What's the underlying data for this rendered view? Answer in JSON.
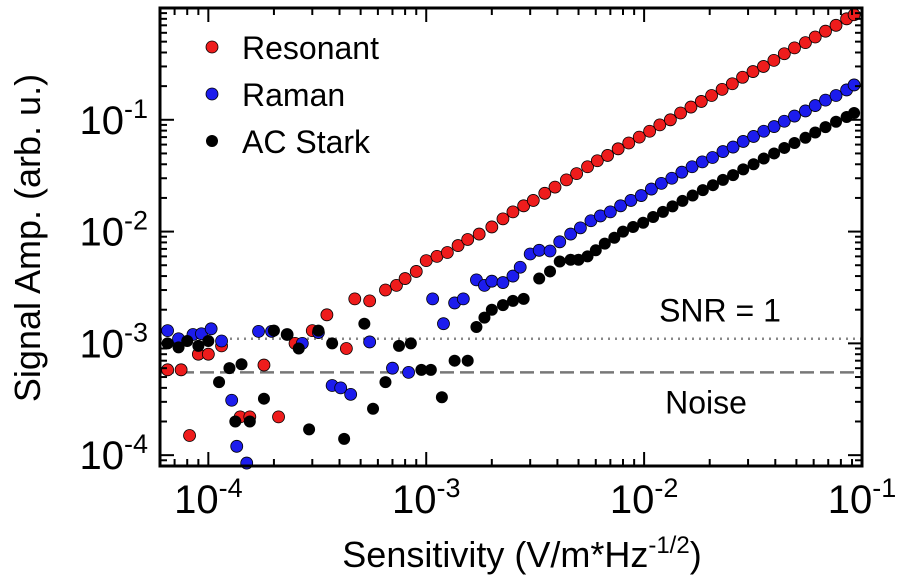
{
  "chart_data": {
    "type": "scatter",
    "x_scale": "log",
    "y_scale": "log",
    "xlim": [
      6e-05,
      0.1
    ],
    "ylim": [
      8e-05,
      1.0
    ],
    "xlabel": "Sensitivity (V/m*Hz",
    "xlabel_sup": "-1/2",
    "xlabel_end": ")",
    "ylabel": "Signal Amp. (arb. u.)",
    "grid": false,
    "legend_position": "top-left",
    "x_ticks": [
      {
        "value": 0.0001,
        "base": "10",
        "exp": "-4"
      },
      {
        "value": 0.001,
        "base": "10",
        "exp": "-3"
      },
      {
        "value": 0.01,
        "base": "10",
        "exp": "-2"
      },
      {
        "value": 0.1,
        "base": "10",
        "exp": "-1"
      }
    ],
    "y_ticks": [
      {
        "value": 0.0001,
        "base": "10",
        "exp": "-4"
      },
      {
        "value": 0.001,
        "base": "10",
        "exp": "-3"
      },
      {
        "value": 0.01,
        "base": "10",
        "exp": "-2"
      },
      {
        "value": 0.1,
        "base": "10",
        "exp": "-1"
      }
    ],
    "reference_lines": [
      {
        "label": "SNR = 1",
        "y": 0.0011,
        "style": "dotted",
        "color": "#888888"
      },
      {
        "label": "Noise",
        "y": 0.00055,
        "style": "dashed",
        "color": "#777777"
      }
    ],
    "series": [
      {
        "name": "Resonant",
        "color": "#ee1c1c",
        "points": [
          [
            6.5e-05,
            0.00058
          ],
          [
            7.5e-05,
            0.00058
          ],
          [
            8.2e-05,
            0.00015
          ],
          [
            9e-05,
            0.0008
          ],
          [
            0.0001,
            0.0008
          ],
          [
            0.000115,
            0.00095
          ],
          [
            0.00014,
            0.00022
          ],
          [
            0.000155,
            0.00022
          ],
          [
            0.00018,
            0.00064
          ],
          [
            0.00021,
            0.00022
          ],
          [
            0.00025,
            0.001
          ],
          [
            0.0003,
            0.0013
          ],
          [
            0.00035,
            0.0018
          ],
          [
            0.00043,
            0.0009
          ],
          [
            0.00047,
            0.0025
          ],
          [
            0.00055,
            0.0024
          ],
          [
            0.00065,
            0.003
          ],
          [
            0.00073,
            0.0033
          ],
          [
            0.0008,
            0.0038
          ],
          [
            0.0009,
            0.0044
          ],
          [
            0.001,
            0.0055
          ],
          [
            0.00112,
            0.006
          ],
          [
            0.00125,
            0.0065
          ],
          [
            0.0014,
            0.0075
          ],
          [
            0.00155,
            0.0085
          ],
          [
            0.00175,
            0.0095
          ],
          [
            0.002,
            0.011
          ],
          [
            0.00225,
            0.013
          ],
          [
            0.0025,
            0.015
          ],
          [
            0.0028,
            0.017
          ],
          [
            0.0031,
            0.019
          ],
          [
            0.0035,
            0.022
          ],
          [
            0.0039,
            0.025
          ],
          [
            0.0044,
            0.029
          ],
          [
            0.0049,
            0.033
          ],
          [
            0.0055,
            0.038
          ],
          [
            0.0061,
            0.043
          ],
          [
            0.0068,
            0.048
          ],
          [
            0.0076,
            0.055
          ],
          [
            0.0085,
            0.062
          ],
          [
            0.0095,
            0.07
          ],
          [
            0.0106,
            0.079
          ],
          [
            0.0118,
            0.09
          ],
          [
            0.0132,
            0.1
          ],
          [
            0.0147,
            0.115
          ],
          [
            0.0164,
            0.13
          ],
          [
            0.0183,
            0.146
          ],
          [
            0.0204,
            0.165
          ],
          [
            0.0228,
            0.187
          ],
          [
            0.0254,
            0.21
          ],
          [
            0.0283,
            0.24
          ],
          [
            0.0316,
            0.27
          ],
          [
            0.0353,
            0.3
          ],
          [
            0.0394,
            0.34
          ],
          [
            0.044,
            0.39
          ],
          [
            0.049,
            0.44
          ],
          [
            0.055,
            0.49
          ],
          [
            0.061,
            0.55
          ],
          [
            0.068,
            0.62
          ],
          [
            0.076,
            0.7
          ],
          [
            0.085,
            0.8
          ],
          [
            0.092,
            0.87
          ]
        ]
      },
      {
        "name": "Raman",
        "color": "#1c1ced",
        "points": [
          [
            6.5e-05,
            0.0013
          ],
          [
            7.3e-05,
            0.0011
          ],
          [
            8.5e-05,
            0.0012
          ],
          [
            9.3e-05,
            0.00122
          ],
          [
            0.000103,
            0.00135
          ],
          [
            0.000115,
            0.00105
          ],
          [
            0.000128,
            0.00031
          ],
          [
            0.000135,
            0.00012
          ],
          [
            0.00015,
            8.5e-05
          ],
          [
            0.00017,
            0.00128
          ],
          [
            0.000195,
            0.00128
          ],
          [
            0.00023,
            0.0012
          ],
          [
            0.00027,
            0.001
          ],
          [
            0.00032,
            0.00125
          ],
          [
            0.00037,
            0.00042
          ],
          [
            0.000405,
            0.0004
          ],
          [
            0.00045,
            0.00035
          ],
          [
            0.00055,
            0.00103
          ],
          [
            0.0007,
            0.0006
          ],
          [
            0.00083,
            0.00055
          ],
          [
            0.00107,
            0.0025
          ],
          [
            0.0012,
            0.0015
          ],
          [
            0.00135,
            0.0023
          ],
          [
            0.00148,
            0.0025
          ],
          [
            0.0017,
            0.0037
          ],
          [
            0.00185,
            0.0033
          ],
          [
            0.002,
            0.0036
          ],
          [
            0.00225,
            0.0035
          ],
          [
            0.0025,
            0.004
          ],
          [
            0.0027,
            0.0048
          ],
          [
            0.003,
            0.0063
          ],
          [
            0.0033,
            0.0068
          ],
          [
            0.0037,
            0.0067
          ],
          [
            0.0041,
            0.0081
          ],
          [
            0.0046,
            0.0095
          ],
          [
            0.0051,
            0.0108
          ],
          [
            0.0057,
            0.0125
          ],
          [
            0.0063,
            0.0138
          ],
          [
            0.007,
            0.015
          ],
          [
            0.0078,
            0.017
          ],
          [
            0.0087,
            0.019
          ],
          [
            0.0097,
            0.021
          ],
          [
            0.0108,
            0.024
          ],
          [
            0.012,
            0.027
          ],
          [
            0.0134,
            0.03
          ],
          [
            0.0149,
            0.034
          ],
          [
            0.0166,
            0.038
          ],
          [
            0.0185,
            0.042
          ],
          [
            0.0206,
            0.046
          ],
          [
            0.023,
            0.052
          ],
          [
            0.0256,
            0.057
          ],
          [
            0.0285,
            0.064
          ],
          [
            0.0318,
            0.071
          ],
          [
            0.0354,
            0.079
          ],
          [
            0.0395,
            0.087
          ],
          [
            0.044,
            0.097
          ],
          [
            0.049,
            0.108
          ],
          [
            0.055,
            0.12
          ],
          [
            0.061,
            0.134
          ],
          [
            0.068,
            0.15
          ],
          [
            0.076,
            0.165
          ],
          [
            0.085,
            0.185
          ],
          [
            0.092,
            0.205
          ]
        ]
      },
      {
        "name": "AC Stark",
        "color": "#000000",
        "points": [
          [
            6.5e-05,
            0.001
          ],
          [
            7.3e-05,
            0.00092
          ],
          [
            8e-05,
            0.00105
          ],
          [
            9e-05,
            0.00095
          ],
          [
            0.0001,
            0.00105
          ],
          [
            0.000112,
            0.00045
          ],
          [
            0.000125,
            0.0006
          ],
          [
            0.000133,
            0.0002
          ],
          [
            0.000142,
            0.00065
          ],
          [
            0.000155,
            0.0002
          ],
          [
            0.00018,
            0.00032
          ],
          [
            0.0002,
            0.0013
          ],
          [
            0.00023,
            0.0012
          ],
          [
            0.00026,
            0.0009
          ],
          [
            0.00029,
            0.00017
          ],
          [
            0.00032,
            0.0013
          ],
          [
            0.00037,
            0.001
          ],
          [
            0.00042,
            0.00014
          ],
          [
            0.00052,
            0.0015
          ],
          [
            0.00057,
            0.00026
          ],
          [
            0.00065,
            0.00045
          ],
          [
            0.00075,
            0.00095
          ],
          [
            0.00085,
            0.001
          ],
          [
            0.00095,
            0.00058
          ],
          [
            0.00105,
            0.00058
          ],
          [
            0.00118,
            0.00033
          ],
          [
            0.00135,
            0.0007
          ],
          [
            0.00155,
            0.0007
          ],
          [
            0.0017,
            0.0014
          ],
          [
            0.00185,
            0.0017
          ],
          [
            0.002,
            0.002
          ],
          [
            0.00225,
            0.0022
          ],
          [
            0.0025,
            0.0024
          ],
          [
            0.0028,
            0.0025
          ],
          [
            0.0033,
            0.0038
          ],
          [
            0.0037,
            0.0044
          ],
          [
            0.0041,
            0.0054
          ],
          [
            0.0046,
            0.0056
          ],
          [
            0.005,
            0.0056
          ],
          [
            0.0055,
            0.006
          ],
          [
            0.006,
            0.0068
          ],
          [
            0.0066,
            0.0078
          ],
          [
            0.0073,
            0.0088
          ],
          [
            0.008,
            0.01
          ],
          [
            0.0089,
            0.011
          ],
          [
            0.0099,
            0.012
          ],
          [
            0.011,
            0.0135
          ],
          [
            0.0122,
            0.015
          ],
          [
            0.0135,
            0.0168
          ],
          [
            0.015,
            0.0188
          ],
          [
            0.0167,
            0.021
          ],
          [
            0.0186,
            0.0235
          ],
          [
            0.0207,
            0.026
          ],
          [
            0.023,
            0.029
          ],
          [
            0.0256,
            0.032
          ],
          [
            0.0285,
            0.036
          ],
          [
            0.0318,
            0.04
          ],
          [
            0.0354,
            0.045
          ],
          [
            0.0395,
            0.05
          ],
          [
            0.044,
            0.056
          ],
          [
            0.049,
            0.062
          ],
          [
            0.055,
            0.069
          ],
          [
            0.061,
            0.077
          ],
          [
            0.068,
            0.086
          ],
          [
            0.076,
            0.096
          ],
          [
            0.085,
            0.106
          ],
          [
            0.092,
            0.115
          ]
        ]
      }
    ]
  }
}
